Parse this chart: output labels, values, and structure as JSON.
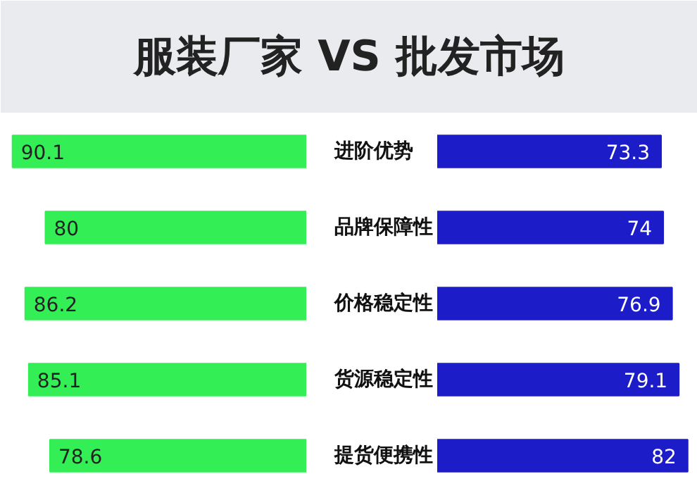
{
  "chart_data": [
    {
      "type": "bar",
      "orientation": "horizontal",
      "tick_labels": "y",
      "grid": false,
      "title": "服装厂家 VS 批发市场",
      "categories": [
        "进阶优势",
        "品牌保障性",
        "价格稳定性",
        "货源稳定性",
        "提货便携性"
      ],
      "series": [
        {
          "color": "#33ee55",
          "values": [
            90.1,
            80,
            86.2,
            85.1,
            78.6
          ]
        }
      ],
      "data_labels": true
    },
    {
      "type": "bar",
      "orientation": "horizontal",
      "grid": false,
      "series": [
        {
          "color": "#1c1cc8",
          "values": [
            73.3,
            74,
            76.9,
            79.1,
            82
          ]
        }
      ],
      "data_labels": true,
      "tick_labels": false
    }
  ]
}
